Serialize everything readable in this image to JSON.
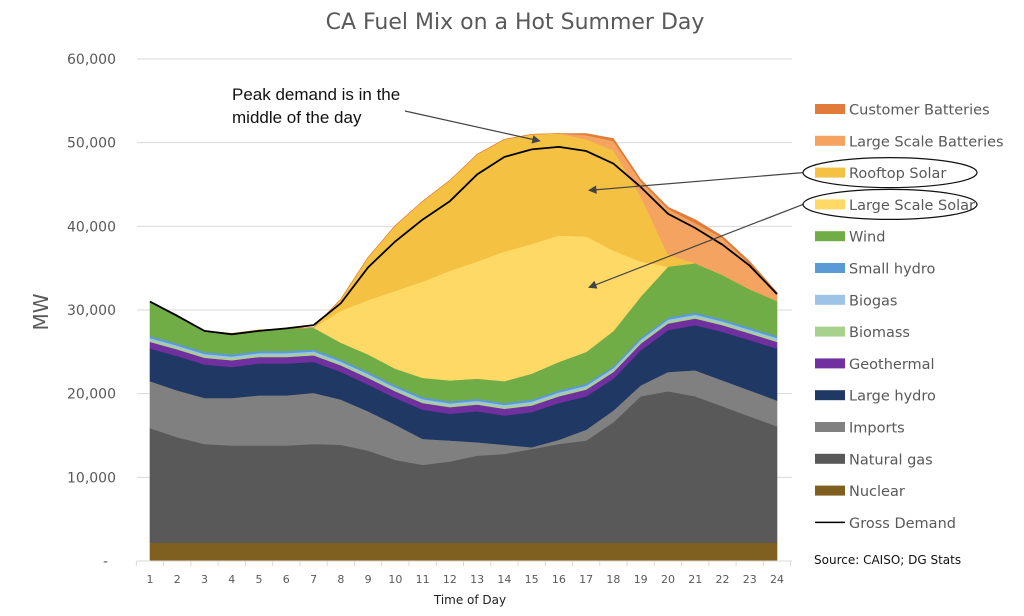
{
  "chart_data": {
    "type": "area",
    "stacked": true,
    "title": "CA Fuel Mix on a Hot Summer Day",
    "xlabel": "Time of Day",
    "ylabel": "MW",
    "x": [
      1,
      2,
      3,
      4,
      5,
      6,
      7,
      8,
      9,
      10,
      11,
      12,
      13,
      14,
      15,
      16,
      17,
      18,
      19,
      20,
      21,
      22,
      23,
      24
    ],
    "ylim": [
      0,
      60000
    ],
    "yticks": [
      {
        "value": 0,
        "label": "-"
      },
      {
        "value": 10000,
        "label": "10,000"
      },
      {
        "value": 20000,
        "label": "20,000"
      },
      {
        "value": 30000,
        "label": "30,000"
      },
      {
        "value": 40000,
        "label": "40,000"
      },
      {
        "value": 50000,
        "label": "50,000"
      },
      {
        "value": 60000,
        "label": "60,000"
      }
    ],
    "grid": true,
    "legend_position": "right",
    "series": [
      {
        "name": "Nuclear",
        "color": "#7f6020",
        "values": [
          2200,
          2200,
          2200,
          2200,
          2200,
          2200,
          2200,
          2200,
          2200,
          2200,
          2200,
          2200,
          2200,
          2200,
          2200,
          2200,
          2200,
          2200,
          2200,
          2200,
          2200,
          2200,
          2200,
          2200
        ]
      },
      {
        "name": "Natural gas",
        "color": "#595959",
        "values": [
          13700,
          12600,
          11800,
          11600,
          11600,
          11600,
          11800,
          11700,
          11000,
          9900,
          9300,
          9700,
          10400,
          10600,
          11200,
          11800,
          12200,
          14400,
          17500,
          18100,
          17500,
          16300,
          15100,
          13900
        ]
      },
      {
        "name": "Imports",
        "color": "#808080",
        "values": [
          5600,
          5600,
          5500,
          5700,
          6000,
          6000,
          6100,
          5400,
          4700,
          4200,
          3100,
          2500,
          1600,
          1100,
          200,
          500,
          1300,
          1400,
          1300,
          2300,
          3100,
          3100,
          3100,
          3100
        ]
      },
      {
        "name": "Large hydro",
        "color": "#203864",
        "values": [
          3900,
          4100,
          4000,
          3700,
          3800,
          3800,
          3700,
          3300,
          3200,
          3200,
          3500,
          3200,
          3700,
          3500,
          4200,
          4400,
          4000,
          3800,
          4200,
          5000,
          5400,
          5800,
          6000,
          6200
        ]
      },
      {
        "name": "Geothermal",
        "color": "#7030a0",
        "values": [
          800,
          800,
          800,
          800,
          800,
          800,
          800,
          800,
          800,
          800,
          800,
          800,
          800,
          800,
          800,
          800,
          800,
          800,
          800,
          800,
          800,
          800,
          800,
          800
        ]
      },
      {
        "name": "Biomass",
        "color": "#a9d18e",
        "values": [
          250,
          250,
          250,
          250,
          250,
          250,
          250,
          250,
          250,
          250,
          250,
          250,
          250,
          250,
          250,
          250,
          250,
          250,
          250,
          250,
          250,
          250,
          250,
          250
        ]
      },
      {
        "name": "Biogas",
        "color": "#9dc3e6",
        "values": [
          200,
          200,
          200,
          200,
          200,
          200,
          200,
          200,
          200,
          200,
          200,
          200,
          200,
          200,
          200,
          200,
          200,
          200,
          200,
          200,
          200,
          200,
          200,
          200
        ]
      },
      {
        "name": "Small hydro",
        "color": "#5b9bd5",
        "values": [
          250,
          250,
          250,
          250,
          250,
          250,
          250,
          250,
          250,
          250,
          250,
          250,
          250,
          250,
          250,
          250,
          250,
          250,
          250,
          250,
          250,
          250,
          250,
          250
        ]
      },
      {
        "name": "Wind",
        "color": "#70ad47",
        "values": [
          4100,
          3400,
          2500,
          2500,
          2500,
          2700,
          2600,
          2000,
          2100,
          2000,
          2300,
          2500,
          2400,
          2600,
          3100,
          3400,
          3800,
          4200,
          4900,
          6100,
          5900,
          5300,
          4600,
          4200
        ]
      },
      {
        "name": "Large Scale Solar",
        "color": "#ffd966",
        "values": [
          0,
          0,
          0,
          0,
          0,
          0,
          0,
          3800,
          6500,
          9300,
          11500,
          13100,
          14000,
          15500,
          15500,
          15100,
          13800,
          9600,
          4200,
          0,
          0,
          0,
          0,
          0
        ]
      },
      {
        "name": "Rooftop Solar",
        "color": "#f4c142",
        "values": [
          0,
          0,
          0,
          0,
          0,
          0,
          0,
          1400,
          5100,
          7800,
          9600,
          10800,
          12800,
          13400,
          13100,
          12200,
          11600,
          12000,
          7800,
          1400,
          0,
          0,
          0,
          0
        ]
      },
      {
        "name": "Large Scale Batteries",
        "color": "#f4a460",
        "values": [
          0,
          0,
          0,
          0,
          0,
          0,
          0,
          0,
          0,
          0,
          0,
          0,
          0,
          0,
          0,
          0,
          500,
          1100,
          1800,
          5500,
          4800,
          4400,
          3000,
          900
        ]
      },
      {
        "name": "Customer Batteries",
        "color": "#e07b39",
        "values": [
          0,
          0,
          0,
          0,
          0,
          0,
          0,
          0,
          0,
          0,
          0,
          0,
          0,
          0,
          0,
          0,
          200,
          300,
          200,
          200,
          400,
          200,
          300,
          100
        ]
      }
    ],
    "gross_demand": {
      "name": "Gross Demand",
      "color": "#000000",
      "values": [
        31000,
        29300,
        27500,
        27100,
        27500,
        27800,
        28200,
        30800,
        35100,
        38200,
        40800,
        43000,
        46200,
        48300,
        49200,
        49500,
        49000,
        47500,
        44700,
        41500,
        39800,
        37800,
        35300,
        31900
      ]
    },
    "legend": [
      "Customer Batteries",
      "Large Scale Batteries",
      "Rooftop Solar",
      "Large Scale Solar",
      "Wind",
      "Small hydro",
      "Biogas",
      "Biomass",
      "Geothermal",
      "Large hydro",
      "Imports",
      "Natural gas",
      "Nuclear",
      "Gross Demand"
    ],
    "highlighted_legend": [
      "Rooftop Solar",
      "Large Scale Solar"
    ],
    "annotations": [
      {
        "lines": [
          "Peak demand is in the",
          "middle of the day"
        ],
        "points_to_hour": 15.3,
        "points_to_value": 50200
      }
    ],
    "arrows": [
      {
        "from_legend": "Rooftop Solar",
        "to_hour": 17.1,
        "to_value": 44300
      },
      {
        "from_legend": "Large Scale Solar",
        "to_hour": 17.1,
        "to_value": 32700
      }
    ],
    "source": "Source: CAISO; DG Stats"
  }
}
